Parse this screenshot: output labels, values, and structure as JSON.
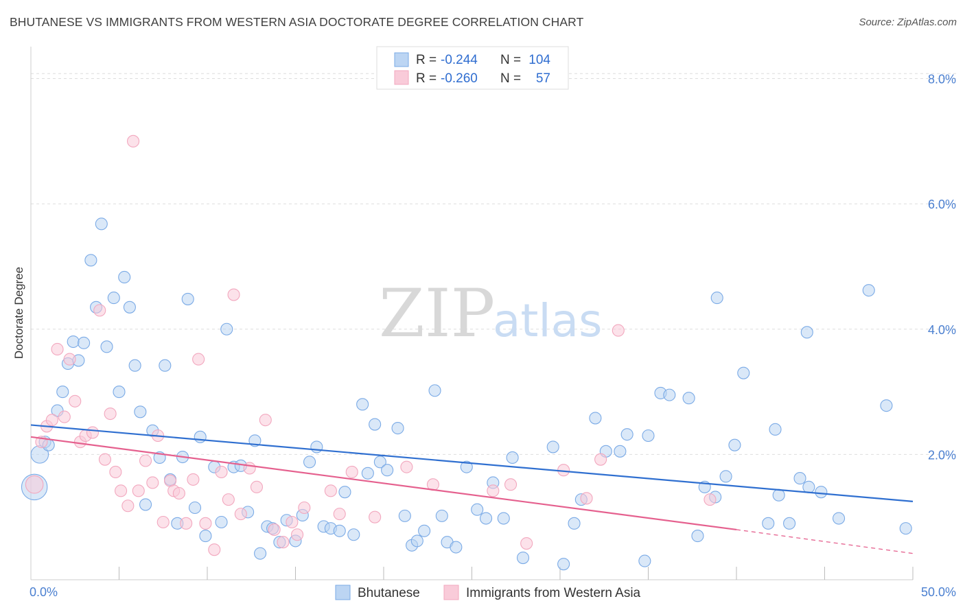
{
  "title": "BHUTANESE VS IMMIGRANTS FROM WESTERN ASIA DOCTORATE DEGREE CORRELATION CHART",
  "source": "Source: ZipAtlas.com",
  "watermark": {
    "part1": "ZIP",
    "part2": "atlas"
  },
  "chart_data": {
    "type": "scatter",
    "title": "BHUTANESE VS IMMIGRANTS FROM WESTERN ASIA DOCTORATE DEGREE CORRELATION CHART",
    "xlabel": "",
    "ylabel": "Doctorate Degree",
    "xlim": [
      0,
      50
    ],
    "ylim": [
      0,
      8.4
    ],
    "x_tick_labels": [
      "0.0%",
      "50.0%"
    ],
    "y_ticks": [
      2,
      4,
      6,
      8
    ],
    "y_tick_labels": [
      "2.0%",
      "4.0%",
      "6.0%",
      "8.0%"
    ],
    "grid": true,
    "legend_position": "top-center",
    "stats": [
      {
        "r_label": "R =",
        "r": "-0.244",
        "n_label": "N =",
        "n": "104"
      },
      {
        "r_label": "R =",
        "r": "-0.260",
        "n_label": "N =",
        "n": "57"
      }
    ],
    "series": [
      {
        "name": "Bhutanese",
        "color": "#7aaae6",
        "fill": "#bcd5f3",
        "trend": {
          "x": [
            0,
            50
          ],
          "y": [
            2.47,
            1.25
          ],
          "color": "#2f6fd0"
        },
        "points": [
          [
            0.2,
            1.48
          ],
          [
            0.5,
            2.0
          ],
          [
            0.8,
            2.2
          ],
          [
            1.0,
            2.15
          ],
          [
            1.5,
            2.7
          ],
          [
            1.8,
            3.0
          ],
          [
            2.1,
            3.45
          ],
          [
            2.4,
            3.8
          ],
          [
            2.7,
            3.5
          ],
          [
            3.0,
            3.78
          ],
          [
            3.4,
            5.1
          ],
          [
            3.7,
            4.35
          ],
          [
            4.0,
            5.68
          ],
          [
            4.3,
            3.72
          ],
          [
            4.7,
            4.5
          ],
          [
            5.0,
            3.0
          ],
          [
            5.3,
            4.83
          ],
          [
            5.6,
            4.35
          ],
          [
            5.9,
            3.42
          ],
          [
            6.2,
            2.68
          ],
          [
            6.5,
            1.2
          ],
          [
            6.9,
            2.38
          ],
          [
            7.3,
            1.95
          ],
          [
            7.6,
            3.42
          ],
          [
            7.9,
            1.6
          ],
          [
            8.3,
            0.9
          ],
          [
            8.6,
            1.96
          ],
          [
            8.9,
            4.48
          ],
          [
            9.3,
            1.15
          ],
          [
            9.6,
            2.28
          ],
          [
            9.9,
            0.7
          ],
          [
            10.4,
            1.8
          ],
          [
            10.8,
            0.92
          ],
          [
            11.1,
            4.0
          ],
          [
            11.5,
            1.8
          ],
          [
            11.9,
            1.82
          ],
          [
            12.3,
            1.08
          ],
          [
            12.7,
            2.22
          ],
          [
            13.0,
            0.42
          ],
          [
            13.4,
            0.85
          ],
          [
            13.7,
            0.82
          ],
          [
            14.1,
            0.6
          ],
          [
            14.5,
            0.95
          ],
          [
            15.0,
            0.62
          ],
          [
            15.4,
            1.03
          ],
          [
            15.8,
            1.88
          ],
          [
            16.2,
            2.12
          ],
          [
            16.6,
            0.85
          ],
          [
            17.0,
            0.82
          ],
          [
            17.5,
            0.78
          ],
          [
            17.8,
            1.4
          ],
          [
            18.3,
            0.72
          ],
          [
            18.8,
            2.8
          ],
          [
            19.1,
            1.7
          ],
          [
            19.5,
            2.48
          ],
          [
            19.8,
            1.88
          ],
          [
            20.2,
            1.75
          ],
          [
            20.8,
            2.42
          ],
          [
            21.2,
            1.02
          ],
          [
            21.6,
            0.55
          ],
          [
            21.9,
            0.62
          ],
          [
            22.3,
            0.78
          ],
          [
            22.9,
            3.02
          ],
          [
            23.3,
            1.02
          ],
          [
            23.6,
            0.6
          ],
          [
            24.1,
            0.52
          ],
          [
            24.7,
            1.8
          ],
          [
            25.3,
            1.12
          ],
          [
            25.8,
            0.98
          ],
          [
            26.2,
            1.55
          ],
          [
            26.8,
            0.98
          ],
          [
            27.3,
            1.95
          ],
          [
            27.9,
            0.35
          ],
          [
            29.6,
            2.12
          ],
          [
            30.2,
            0.25
          ],
          [
            30.8,
            0.9
          ],
          [
            31.2,
            1.28
          ],
          [
            32.0,
            2.58
          ],
          [
            32.6,
            2.05
          ],
          [
            33.4,
            2.05
          ],
          [
            33.8,
            2.32
          ],
          [
            34.8,
            0.3
          ],
          [
            35.0,
            2.3
          ],
          [
            35.7,
            2.98
          ],
          [
            36.2,
            2.95
          ],
          [
            37.3,
            2.9
          ],
          [
            37.8,
            0.7
          ],
          [
            38.2,
            1.48
          ],
          [
            38.8,
            1.32
          ],
          [
            38.9,
            4.5
          ],
          [
            39.4,
            1.65
          ],
          [
            39.9,
            2.15
          ],
          [
            40.4,
            3.3
          ],
          [
            41.8,
            0.9
          ],
          [
            42.2,
            2.4
          ],
          [
            42.4,
            1.35
          ],
          [
            43.0,
            0.9
          ],
          [
            43.6,
            1.62
          ],
          [
            44.0,
            3.95
          ],
          [
            44.1,
            1.48
          ],
          [
            44.8,
            1.4
          ],
          [
            45.8,
            0.98
          ],
          [
            47.5,
            4.62
          ],
          [
            48.5,
            2.78
          ],
          [
            49.6,
            0.82
          ]
        ],
        "sizes": {
          "0": 2.2,
          "1": 1.5
        }
      },
      {
        "name": "Immigrants from Western Asia",
        "color": "#f2a7be",
        "fill": "#f9cbd9",
        "trend": {
          "x": [
            0,
            40
          ],
          "y": [
            2.28,
            0.8
          ],
          "dashed_to": [
            50,
            0.42
          ],
          "color": "#e5608e"
        },
        "points": [
          [
            0.2,
            1.52
          ],
          [
            0.6,
            2.2
          ],
          [
            0.9,
            2.45
          ],
          [
            1.2,
            2.55
          ],
          [
            1.5,
            3.68
          ],
          [
            1.9,
            2.6
          ],
          [
            2.2,
            3.52
          ],
          [
            2.5,
            2.85
          ],
          [
            2.8,
            2.2
          ],
          [
            3.1,
            2.3
          ],
          [
            3.5,
            2.35
          ],
          [
            3.9,
            4.3
          ],
          [
            4.2,
            1.92
          ],
          [
            4.5,
            2.65
          ],
          [
            4.8,
            1.72
          ],
          [
            5.1,
            1.42
          ],
          [
            5.5,
            1.18
          ],
          [
            5.8,
            7.0
          ],
          [
            6.1,
            1.42
          ],
          [
            6.5,
            1.9
          ],
          [
            6.9,
            1.55
          ],
          [
            7.2,
            2.3
          ],
          [
            7.5,
            0.92
          ],
          [
            7.9,
            1.58
          ],
          [
            8.1,
            1.42
          ],
          [
            8.4,
            1.38
          ],
          [
            8.8,
            0.9
          ],
          [
            9.2,
            1.6
          ],
          [
            9.5,
            3.52
          ],
          [
            9.9,
            0.9
          ],
          [
            10.4,
            0.48
          ],
          [
            10.8,
            1.72
          ],
          [
            11.2,
            1.28
          ],
          [
            11.5,
            4.55
          ],
          [
            11.9,
            1.05
          ],
          [
            12.4,
            1.78
          ],
          [
            12.8,
            1.48
          ],
          [
            13.3,
            2.55
          ],
          [
            13.8,
            0.8
          ],
          [
            14.3,
            0.6
          ],
          [
            14.8,
            0.92
          ],
          [
            15.1,
            0.72
          ],
          [
            15.5,
            1.15
          ],
          [
            17.0,
            1.42
          ],
          [
            17.5,
            1.05
          ],
          [
            18.2,
            1.72
          ],
          [
            19.5,
            1.0
          ],
          [
            21.3,
            1.8
          ],
          [
            22.8,
            1.52
          ],
          [
            26.2,
            1.42
          ],
          [
            27.2,
            1.52
          ],
          [
            28.1,
            0.58
          ],
          [
            30.2,
            1.75
          ],
          [
            31.5,
            1.3
          ],
          [
            32.3,
            1.92
          ],
          [
            33.3,
            3.98
          ],
          [
            38.5,
            1.28
          ]
        ],
        "sizes": {
          "0": 1.5
        }
      }
    ]
  },
  "bottom_legend": {
    "items": [
      "Bhutanese",
      "Immigrants from Western Asia"
    ]
  }
}
